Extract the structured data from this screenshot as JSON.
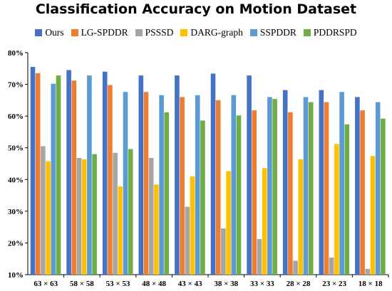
{
  "chart_data": {
    "type": "bar",
    "title": "Classification Accuracy on Motion Dataset",
    "categories": [
      "63 × 63",
      "58 × 58",
      "53 × 53",
      "48 × 48",
      "43 × 43",
      "38 × 38",
      "33 × 33",
      "28 × 28",
      "23 × 23",
      "18 × 18"
    ],
    "series": [
      {
        "name": "Ours",
        "color": "#4472C4",
        "values": [
          75.5,
          74.5,
          74.0,
          72.8,
          72.8,
          73.4,
          72.8,
          68.2,
          68.2,
          66.0
        ]
      },
      {
        "name": "LG-SPDDR",
        "color": "#ED7D31",
        "values": [
          73.5,
          71.2,
          69.8,
          67.6,
          66.0,
          65.0,
          61.8,
          61.2,
          64.4,
          61.8
        ]
      },
      {
        "name": "PSSSD",
        "color": "#A5A5A5",
        "values": [
          50.5,
          46.8,
          48.4,
          46.8,
          31.4,
          24.6,
          21.2,
          14.4,
          15.4,
          11.8
        ]
      },
      {
        "name": "DARG-graph",
        "color": "#FFC000",
        "values": [
          45.8,
          46.4,
          37.8,
          38.4,
          41.0,
          42.6,
          43.6,
          46.4,
          51.2,
          47.4
        ]
      },
      {
        "name": "SSPDDR",
        "color": "#5B9BD5",
        "values": [
          70.2,
          72.8,
          67.6,
          66.6,
          66.6,
          66.6,
          66.0,
          66.0,
          67.6,
          64.4
        ]
      },
      {
        "name": "PDDRSPD",
        "color": "#70AD47",
        "values": [
          72.8,
          48.0,
          49.6,
          61.2,
          58.6,
          60.2,
          65.4,
          64.4,
          57.4,
          59.2
        ]
      }
    ],
    "xlabel": "",
    "ylabel": "",
    "ylim": [
      10,
      80
    ],
    "yticks": [
      "10%",
      "20%",
      "30%",
      "40%",
      "50%",
      "60%",
      "70%",
      "80%"
    ],
    "grid": false,
    "legend_position": "top"
  }
}
